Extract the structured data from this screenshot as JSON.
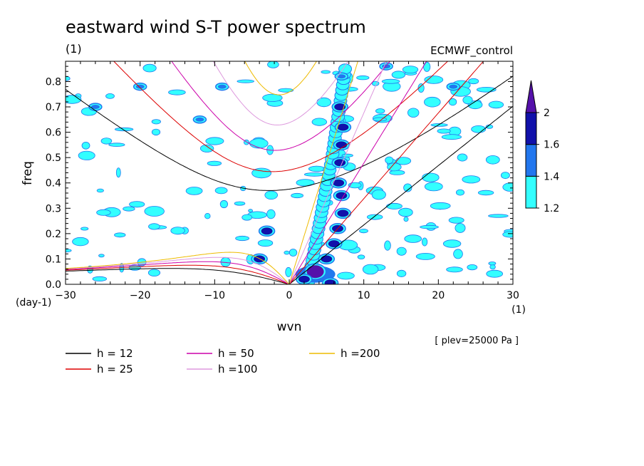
{
  "chart_data": {
    "type": "heatmap",
    "title": "eastward wind S-T power spectrum",
    "subtitle_left": "(1)",
    "subtitle_right": "ECMWF_control",
    "xlabel": "wvn",
    "ylabel": "freq",
    "x_unit": "(1)",
    "y_unit": "(day-1)",
    "annotation": "[ plev=25000 Pa ]",
    "xlim": [
      -30,
      30
    ],
    "ylim": [
      0,
      0.88
    ],
    "xticks": [
      -30,
      -20,
      -10,
      0,
      10,
      20,
      30
    ],
    "yticks": [
      0.0,
      0.1,
      0.2,
      0.3,
      0.4,
      0.5,
      0.6,
      0.7,
      0.8
    ],
    "xtick_labels": [
      "−30",
      "−20",
      "−10",
      "0",
      "10",
      "20",
      "30"
    ],
    "ytick_labels": [
      "0.0",
      "0.1",
      "0.2",
      "0.3",
      "0.4",
      "0.5",
      "0.6",
      "0.7",
      "0.8"
    ],
    "colorbar": {
      "levels": [
        1.2,
        1.4,
        1.6,
        2
      ],
      "labels": [
        "1.2",
        "1.4",
        "1.6",
        "2"
      ],
      "colors": [
        "#33ffff",
        "#2277ee",
        "#1111aa",
        "#5511aa"
      ]
    },
    "dispersion_curves": [
      {
        "label": "h = 12",
        "h": 12,
        "color": "#000000"
      },
      {
        "label": "h = 25",
        "h": 25,
        "color": "#dd0000"
      },
      {
        "label": "h = 50",
        "h": 50,
        "color": "#cc00aa"
      },
      {
        "label": "h =100",
        "h": 100,
        "color": "#dd99dd"
      },
      {
        "label": "h =200",
        "h": 200,
        "color": "#eebb00"
      }
    ],
    "spectral_peaks": [
      {
        "k": 7.0,
        "f": 0.82,
        "level": 1.4
      },
      {
        "k": 6.8,
        "f": 0.7,
        "level": 1.6
      },
      {
        "k": 7.2,
        "f": 0.62,
        "level": 1.6
      },
      {
        "k": 7.0,
        "f": 0.55,
        "level": 1.6
      },
      {
        "k": 6.8,
        "f": 0.48,
        "level": 1.6
      },
      {
        "k": 6.6,
        "f": 0.4,
        "level": 1.6
      },
      {
        "k": 7.0,
        "f": 0.35,
        "level": 1.6
      },
      {
        "k": 7.2,
        "f": 0.28,
        "level": 1.6
      },
      {
        "k": 6.5,
        "f": 0.22,
        "level": 1.6
      },
      {
        "k": 6.0,
        "f": 0.16,
        "level": 1.6
      },
      {
        "k": 5.0,
        "f": 0.1,
        "level": 1.6
      },
      {
        "k": 3.5,
        "f": 0.05,
        "level": 2
      },
      {
        "k": 2.0,
        "f": 0.02,
        "level": 1.6
      },
      {
        "k": -3.0,
        "f": 0.21,
        "level": 1.6
      },
      {
        "k": -4.0,
        "f": 0.1,
        "level": 1.6
      },
      {
        "k": -12.0,
        "f": 0.65,
        "level": 1.4
      },
      {
        "k": -20.0,
        "f": 0.78,
        "level": 1.4
      },
      {
        "k": -26.0,
        "f": 0.7,
        "level": 1.4
      },
      {
        "k": -9.0,
        "f": 0.78,
        "level": 1.4
      },
      {
        "k": 22.0,
        "f": 0.78,
        "level": 1.4
      },
      {
        "k": 13.0,
        "f": 0.86,
        "level": 1.4
      },
      {
        "k": 5.5,
        "f": 0.005,
        "level": 1.6
      }
    ]
  }
}
